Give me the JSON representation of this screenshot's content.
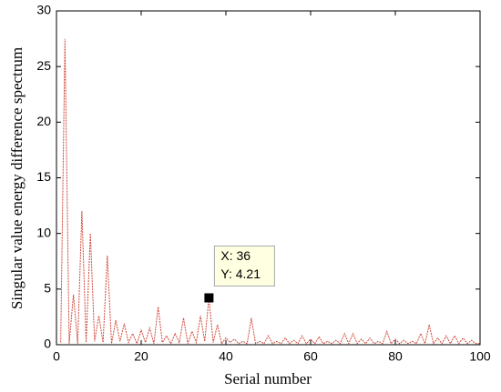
{
  "chart_data": {
    "type": "line",
    "xlabel": "Serial number",
    "ylabel": "Singular value energy difference spectrum",
    "x": [
      1,
      2,
      3,
      4,
      5,
      6,
      7,
      8,
      9,
      10,
      11,
      12,
      13,
      14,
      15,
      16,
      17,
      18,
      19,
      20,
      21,
      22,
      23,
      24,
      25,
      26,
      27,
      28,
      29,
      30,
      31,
      32,
      33,
      34,
      35,
      36,
      37,
      38,
      39,
      40,
      41,
      42,
      43,
      44,
      45,
      46,
      47,
      48,
      49,
      50,
      51,
      52,
      53,
      54,
      55,
      56,
      57,
      58,
      59,
      60,
      61,
      62,
      63,
      64,
      65,
      66,
      67,
      68,
      69,
      70,
      71,
      72,
      73,
      74,
      75,
      76,
      77,
      78,
      79,
      80,
      81,
      82,
      83,
      84,
      85,
      86,
      87,
      88,
      89,
      90,
      91,
      92,
      93,
      94,
      95,
      96,
      97,
      98,
      99,
      100
    ],
    "series": [
      {
        "color": "#d04a3c",
        "values": [
          0.2,
          27.5,
          0.1,
          4.5,
          0.1,
          12,
          0.2,
          10,
          0.3,
          2.6,
          0.2,
          8,
          0.1,
          2.2,
          0.3,
          1.9,
          0.2,
          1.0,
          0.1,
          1.3,
          0.2,
          1.5,
          0.1,
          3.4,
          0.2,
          0.8,
          0.1,
          1.0,
          0.2,
          2.4,
          0.1,
          1.2,
          0.2,
          2.6,
          0.3,
          4.21,
          0.2,
          1.8,
          0.1,
          0.6,
          0.2,
          0.5,
          0.1,
          0.3,
          0.1,
          2.4,
          0.1,
          0.3,
          0.1,
          0.8,
          0.1,
          0.3,
          0.1,
          0.6,
          0.1,
          0.4,
          0.1,
          0.8,
          0.1,
          0.5,
          0.1,
          0.7,
          0.1,
          0.3,
          0.1,
          0.4,
          0.1,
          1.0,
          0.1,
          1.0,
          0.1,
          0.5,
          0.1,
          0.6,
          0.1,
          0.3,
          0.1,
          1.2,
          0.1,
          0.5,
          0.1,
          0.4,
          0.1,
          0.3,
          0.1,
          1.0,
          0.1,
          1.8,
          0.1,
          0.6,
          0.1,
          0.8,
          0.1,
          0.8,
          0.1,
          0.6,
          0.1,
          0.4,
          0.1,
          0.1
        ]
      }
    ],
    "xlim": [
      0,
      100
    ],
    "xticks": [
      0,
      20,
      40,
      60,
      80,
      100
    ],
    "ylim": [
      0,
      30
    ],
    "yticks": [
      0,
      5,
      10,
      15,
      20,
      25,
      30
    ],
    "datatip": {
      "index": 35,
      "x_label": "X: 36",
      "y_label": "Y: 4.21"
    }
  }
}
